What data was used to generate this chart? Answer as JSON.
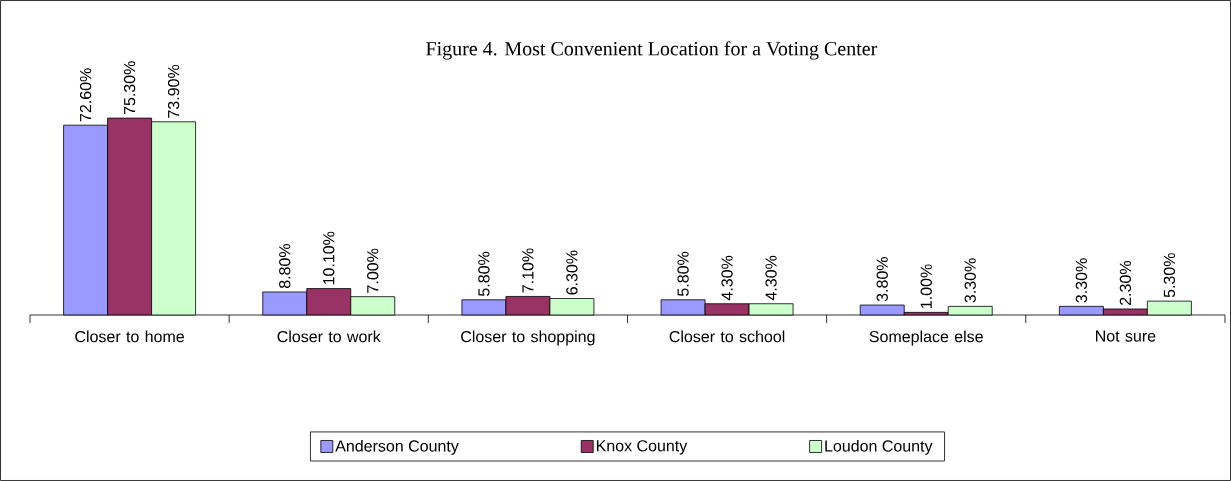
{
  "chart_data": {
    "type": "bar",
    "title": "Figure 4. Most Convenient Location for a Voting Center",
    "categories": [
      "Closer to home",
      "Closer to work",
      "Closer to shopping",
      "Closer to school",
      "Someplace else",
      "Not sure"
    ],
    "series": [
      {
        "name": "Anderson County",
        "color": "#9999ff",
        "values": [
          72.6,
          8.8,
          5.8,
          5.8,
          3.8,
          3.3
        ],
        "value_labels": [
          "72.60%",
          "8.80%",
          "5.80%",
          "5.80%",
          "3.80%",
          "3.30%"
        ]
      },
      {
        "name": "Knox County",
        "color": "#993366",
        "values": [
          75.3,
          10.1,
          7.1,
          4.3,
          1.0,
          2.3
        ],
        "value_labels": [
          "75.30%",
          "10.10%",
          "7.10%",
          "4.30%",
          "1.00%",
          "2.30%"
        ]
      },
      {
        "name": "Loudon County",
        "color": "#ccffcc",
        "values": [
          73.9,
          7.0,
          6.3,
          4.3,
          3.3,
          5.3
        ],
        "value_labels": [
          "73.90%",
          "7.00%",
          "6.30%",
          "4.30%",
          "3.30%",
          "5.30%"
        ]
      }
    ],
    "legend": "bottom"
  }
}
